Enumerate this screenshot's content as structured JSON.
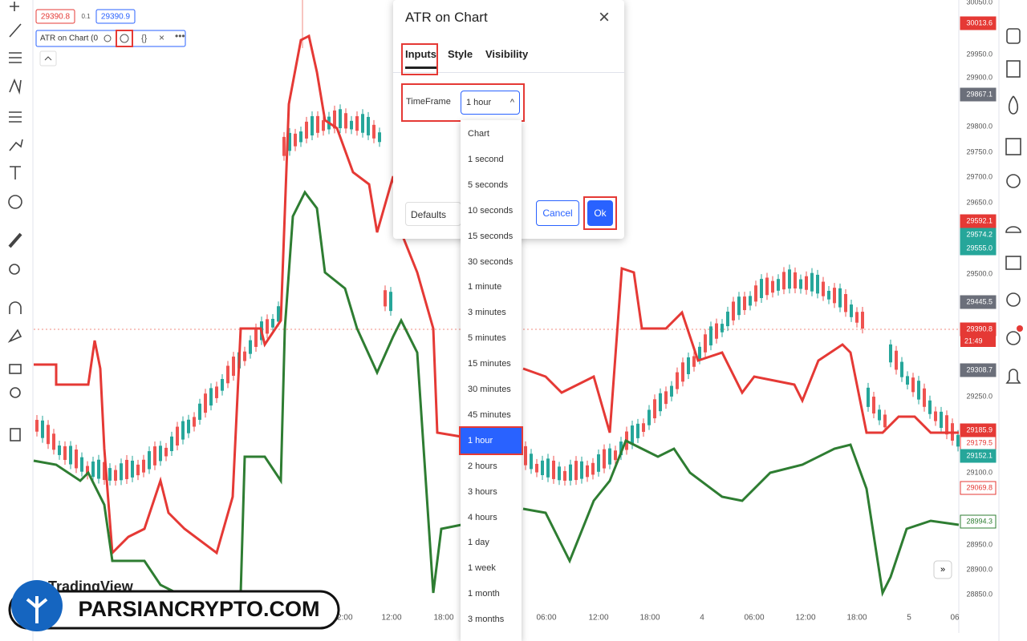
{
  "header": {
    "price_sell": "29390.8",
    "spread": "0.1",
    "price_buy": "29390.9",
    "indicator": "ATR on Chart (0"
  },
  "dialog": {
    "title": "ATR on Chart",
    "tabs": [
      "Inputs",
      "Style",
      "Visibility"
    ],
    "field_label": "TimeFrame",
    "selected": "1 hour",
    "buttons": {
      "defaults": "Defaults",
      "cancel": "Cancel",
      "ok": "Ok"
    }
  },
  "dropdown": {
    "options": [
      "Chart",
      "1 second",
      "5 seconds",
      "10 seconds",
      "15 seconds",
      "30 seconds",
      "1 minute",
      "3 minutes",
      "5 minutes",
      "15 minutes",
      "30 minutes",
      "45 minutes",
      "1 hour",
      "2 hours",
      "3 hours",
      "4 hours",
      "1 day",
      "1 week",
      "1 month",
      "3 months"
    ],
    "selected_index": 12
  },
  "price_axis": [
    {
      "label": "30050.0",
      "kind": "plain"
    },
    {
      "label": "30013.6",
      "kind": "red"
    },
    {
      "label": "29950.0",
      "kind": "plain"
    },
    {
      "label": "29900.0",
      "kind": "plain"
    },
    {
      "label": "29867.1",
      "kind": "gray"
    },
    {
      "label": "29800.0",
      "kind": "plain"
    },
    {
      "label": "29750.0",
      "kind": "plain"
    },
    {
      "label": "29700.0",
      "kind": "plain"
    },
    {
      "label": "29650.0",
      "kind": "plain"
    },
    {
      "label": "29592.1",
      "kind": "red"
    },
    {
      "label": "29574.2",
      "kind": "green"
    },
    {
      "label": "29555.0",
      "kind": "green"
    },
    {
      "label": "29500.0",
      "kind": "plain"
    },
    {
      "label": "29445.5",
      "kind": "gray"
    },
    {
      "label": "29390.8",
      "kind": "red"
    },
    {
      "label": "29308.7",
      "kind": "gray"
    },
    {
      "label": "29250.0",
      "kind": "plain"
    },
    {
      "label": "29185.9",
      "kind": "red"
    },
    {
      "label": "29179.5",
      "kind": "red-outline"
    },
    {
      "label": "29152.1",
      "kind": "green"
    },
    {
      "label": "29100.0",
      "kind": "plain"
    },
    {
      "label": "29069.8",
      "kind": "red-outline"
    },
    {
      "label": "28994.3",
      "kind": "green-outline"
    },
    {
      "label": "28950.0",
      "kind": "plain"
    },
    {
      "label": "28900.0",
      "kind": "plain"
    },
    {
      "label": "28850.0",
      "kind": "plain"
    }
  ],
  "countdown": "21:49",
  "time_axis": [
    "12:00",
    "12:00",
    "18:00",
    "06:00",
    "12:00",
    "18:00",
    "4",
    "06:00",
    "12:00",
    "18:00",
    "5",
    "06"
  ],
  "watermark": "TradingView",
  "logo": "PARSIANCRYPTO.COM"
}
